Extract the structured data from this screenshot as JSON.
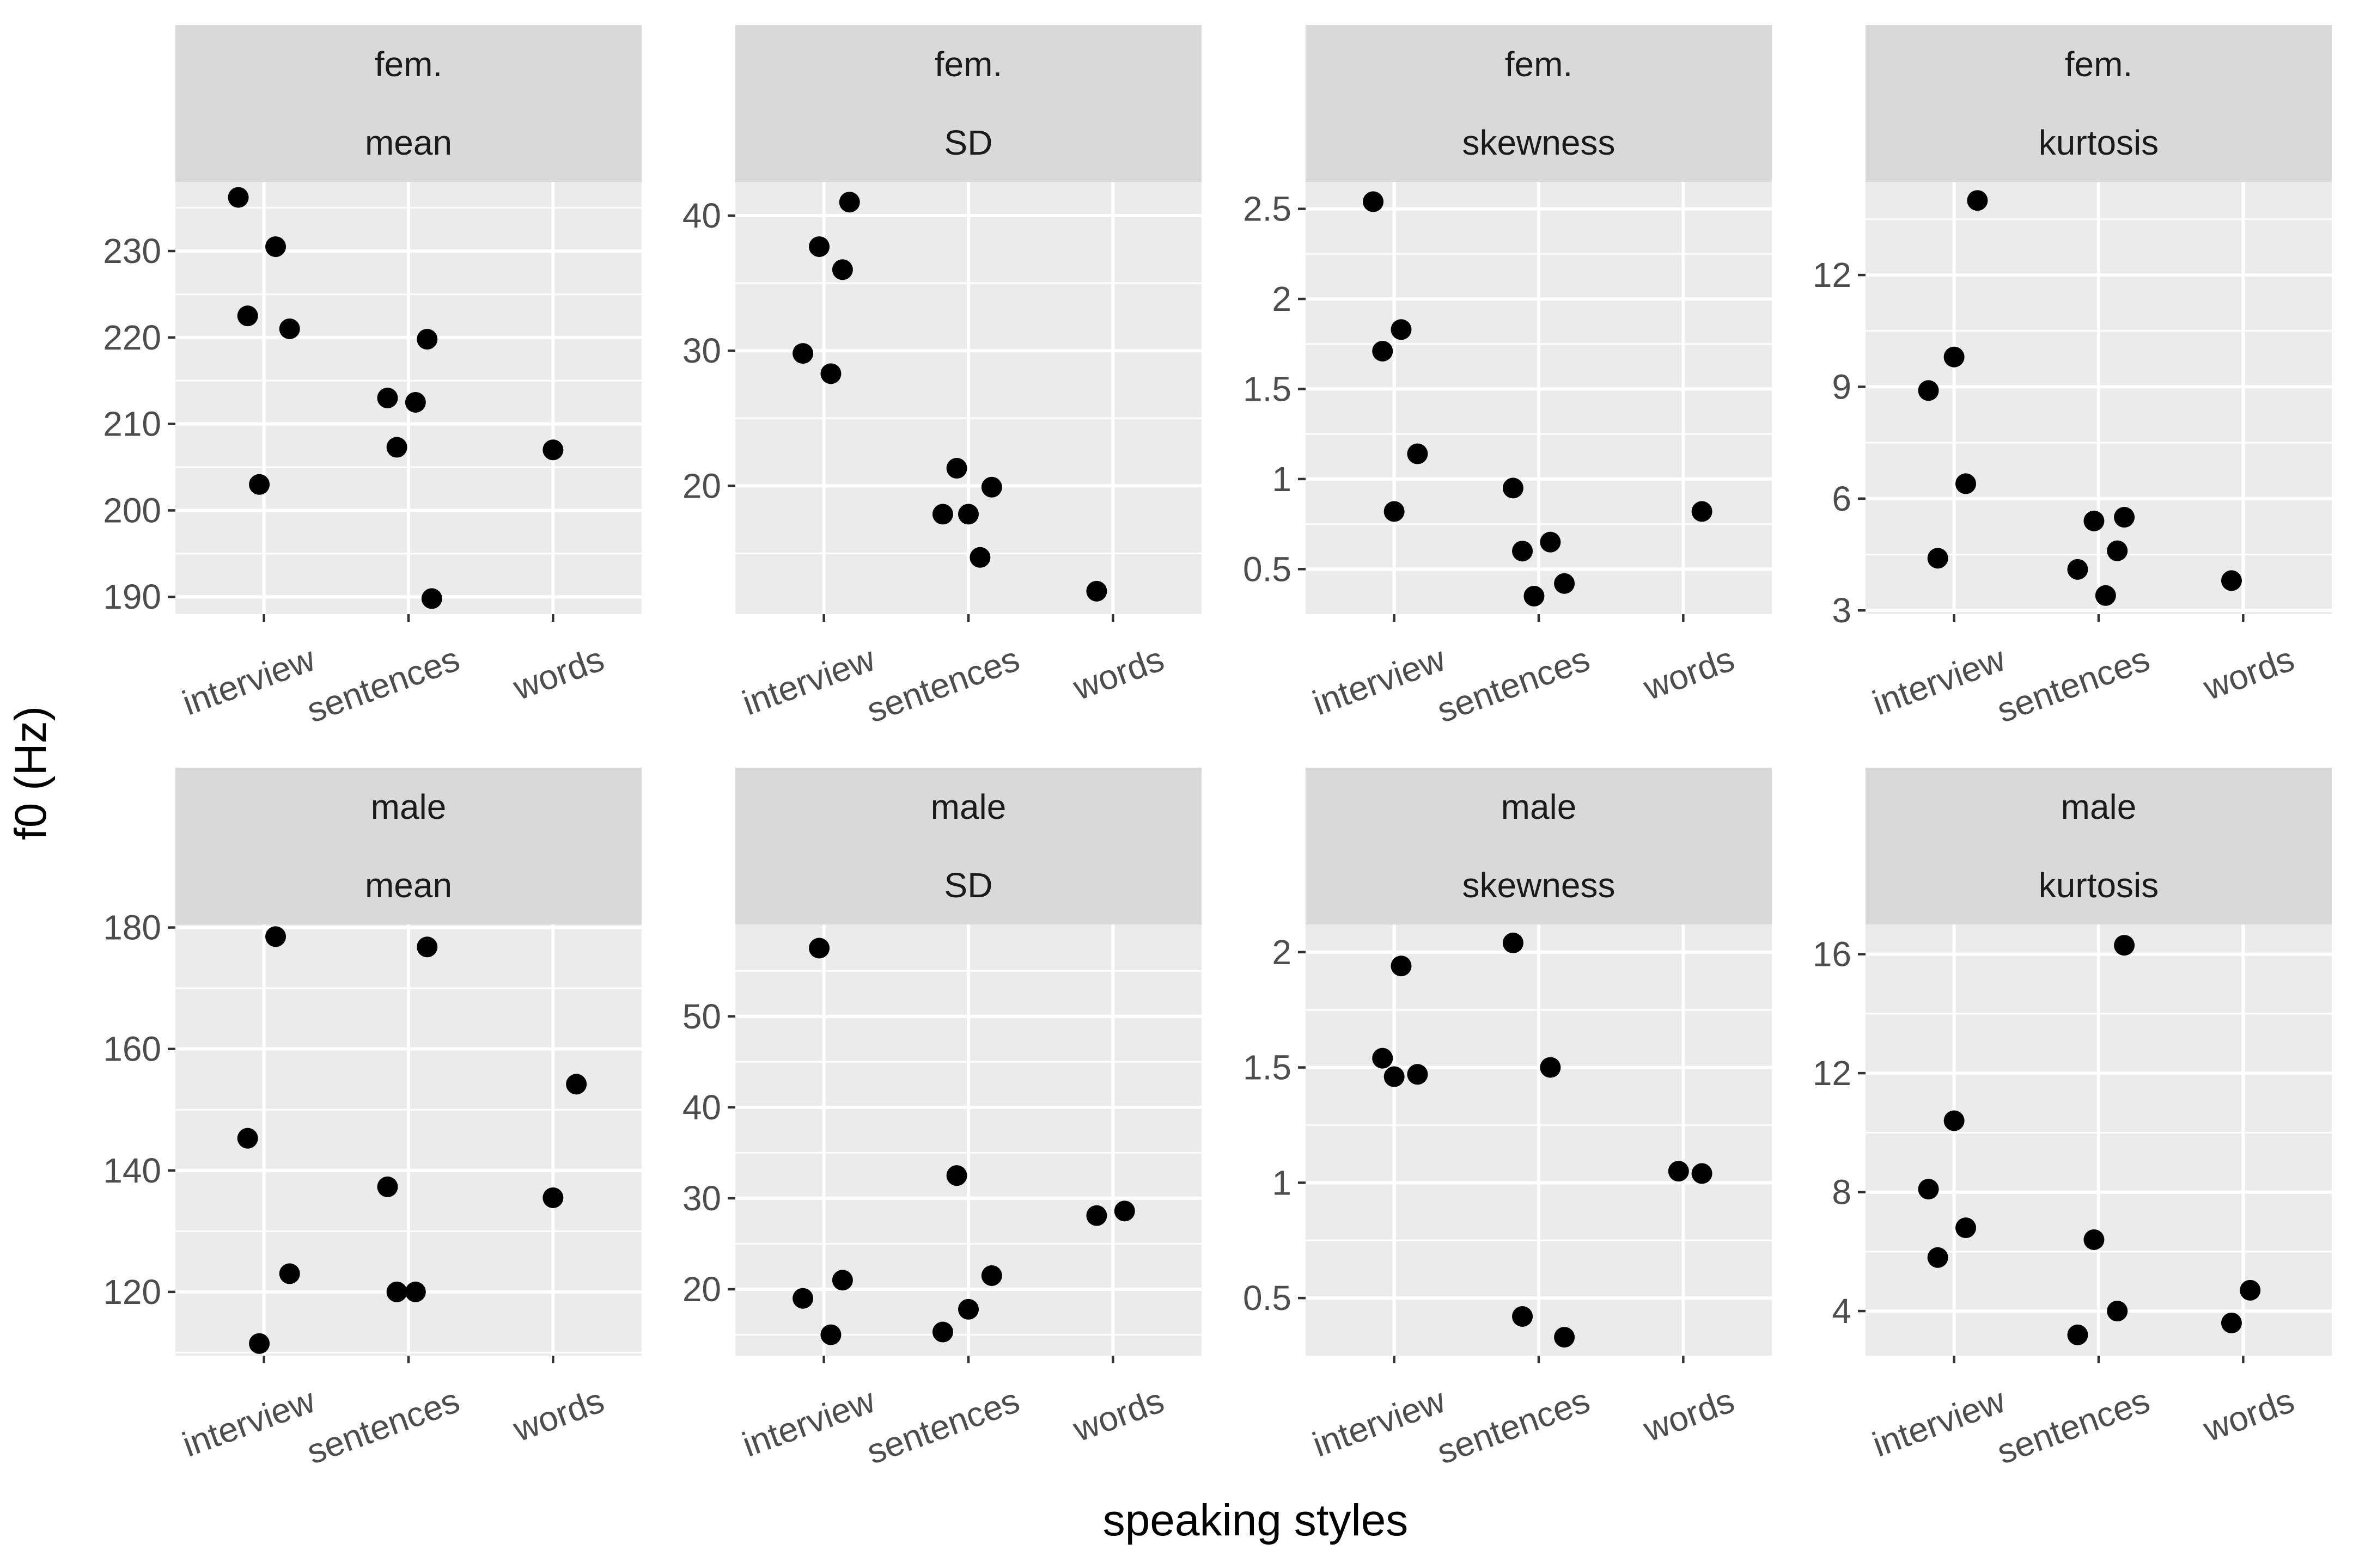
{
  "chart_data": {
    "type": "scatter",
    "xlabel": "speaking styles",
    "ylabel": "f0 (Hz)",
    "grid": true,
    "categories": [
      "interview",
      "sentences",
      "words"
    ],
    "panels": [
      {
        "strip": [
          "fem.",
          "mean"
        ],
        "ylim": [
          188,
          238
        ],
        "yticks": [
          190,
          200,
          210,
          220,
          230
        ],
        "points": [
          {
            "x": "interview",
            "y": 236.2
          },
          {
            "x": "interview",
            "y": 230.5
          },
          {
            "x": "interview",
            "y": 222.5
          },
          {
            "x": "interview",
            "y": 221.0
          },
          {
            "x": "interview",
            "y": 203.0
          },
          {
            "x": "sentences",
            "y": 219.8
          },
          {
            "x": "sentences",
            "y": 213.0
          },
          {
            "x": "sentences",
            "y": 212.5
          },
          {
            "x": "sentences",
            "y": 207.3
          },
          {
            "x": "sentences",
            "y": 189.8
          },
          {
            "x": "words",
            "y": 207.0
          }
        ]
      },
      {
        "strip": [
          "fem.",
          "SD"
        ],
        "ylim": [
          10.5,
          42.5
        ],
        "yticks": [
          20,
          30,
          40
        ],
        "points": [
          {
            "x": "interview",
            "y": 41.0
          },
          {
            "x": "interview",
            "y": 37.7
          },
          {
            "x": "interview",
            "y": 36.0
          },
          {
            "x": "interview",
            "y": 29.8
          },
          {
            "x": "interview",
            "y": 28.3
          },
          {
            "x": "sentences",
            "y": 21.3
          },
          {
            "x": "sentences",
            "y": 19.9
          },
          {
            "x": "sentences",
            "y": 17.9
          },
          {
            "x": "sentences",
            "y": 17.9
          },
          {
            "x": "sentences",
            "y": 14.7
          },
          {
            "x": "words",
            "y": 12.2
          }
        ]
      },
      {
        "strip": [
          "fem.",
          "skewness"
        ],
        "ylim": [
          0.25,
          2.65
        ],
        "yticks": [
          0.5,
          1.0,
          1.5,
          2.0,
          2.5
        ],
        "points": [
          {
            "x": "interview",
            "y": 2.54
          },
          {
            "x": "interview",
            "y": 1.83
          },
          {
            "x": "interview",
            "y": 1.71
          },
          {
            "x": "interview",
            "y": 1.14
          },
          {
            "x": "interview",
            "y": 0.82
          },
          {
            "x": "sentences",
            "y": 0.95
          },
          {
            "x": "sentences",
            "y": 0.65
          },
          {
            "x": "sentences",
            "y": 0.6
          },
          {
            "x": "sentences",
            "y": 0.42
          },
          {
            "x": "sentences",
            "y": 0.35
          },
          {
            "x": "words",
            "y": 0.82
          }
        ]
      },
      {
        "strip": [
          "fem.",
          "kurtosis"
        ],
        "ylim": [
          2.9,
          14.5
        ],
        "yticks": [
          3,
          6,
          9,
          12
        ],
        "points": [
          {
            "x": "interview",
            "y": 14.0
          },
          {
            "x": "interview",
            "y": 9.8
          },
          {
            "x": "interview",
            "y": 8.9
          },
          {
            "x": "interview",
            "y": 6.4
          },
          {
            "x": "interview",
            "y": 4.4
          },
          {
            "x": "sentences",
            "y": 5.5
          },
          {
            "x": "sentences",
            "y": 5.4
          },
          {
            "x": "sentences",
            "y": 4.6
          },
          {
            "x": "sentences",
            "y": 4.1
          },
          {
            "x": "sentences",
            "y": 3.4
          },
          {
            "x": "words",
            "y": 3.8
          }
        ]
      },
      {
        "strip": [
          "male",
          "mean"
        ],
        "ylim": [
          109.5,
          180.5
        ],
        "yticks": [
          120,
          140,
          160,
          180
        ],
        "points": [
          {
            "x": "interview",
            "y": 178.5
          },
          {
            "x": "interview",
            "y": 145.3
          },
          {
            "x": "interview",
            "y": 123.0
          },
          {
            "x": "interview",
            "y": 111.5
          },
          {
            "x": "sentences",
            "y": 176.8
          },
          {
            "x": "sentences",
            "y": 137.3
          },
          {
            "x": "sentences",
            "y": 120.0
          },
          {
            "x": "sentences",
            "y": 120.0
          },
          {
            "x": "words",
            "y": 154.2
          },
          {
            "x": "words",
            "y": 135.5
          }
        ]
      },
      {
        "strip": [
          "male",
          "SD"
        ],
        "ylim": [
          12.7,
          60.1
        ],
        "yticks": [
          20,
          30,
          40,
          50
        ],
        "points": [
          {
            "x": "interview",
            "y": 57.5
          },
          {
            "x": "interview",
            "y": 21.0
          },
          {
            "x": "interview",
            "y": 19.0
          },
          {
            "x": "interview",
            "y": 15.0
          },
          {
            "x": "sentences",
            "y": 32.5
          },
          {
            "x": "sentences",
            "y": 21.5
          },
          {
            "x": "sentences",
            "y": 17.8
          },
          {
            "x": "sentences",
            "y": 15.3
          },
          {
            "x": "words",
            "y": 28.6
          },
          {
            "x": "words",
            "y": 28.1
          }
        ]
      },
      {
        "strip": [
          "male",
          "skewness"
        ],
        "ylim": [
          0.25,
          2.12
        ],
        "yticks": [
          0.5,
          1.0,
          1.5,
          2.0
        ],
        "points": [
          {
            "x": "interview",
            "y": 1.94
          },
          {
            "x": "interview",
            "y": 1.54
          },
          {
            "x": "interview",
            "y": 1.47
          },
          {
            "x": "interview",
            "y": 1.46
          },
          {
            "x": "sentences",
            "y": 2.04
          },
          {
            "x": "sentences",
            "y": 1.5
          },
          {
            "x": "sentences",
            "y": 0.42
          },
          {
            "x": "sentences",
            "y": 0.33
          },
          {
            "x": "words",
            "y": 1.05
          },
          {
            "x": "words",
            "y": 1.04
          }
        ]
      },
      {
        "strip": [
          "male",
          "kurtosis"
        ],
        "ylim": [
          2.5,
          17.0
        ],
        "yticks": [
          4,
          8,
          12,
          16
        ],
        "points": [
          {
            "x": "interview",
            "y": 10.4
          },
          {
            "x": "interview",
            "y": 8.1
          },
          {
            "x": "interview",
            "y": 6.8
          },
          {
            "x": "interview",
            "y": 5.8
          },
          {
            "x": "sentences",
            "y": 16.3
          },
          {
            "x": "sentences",
            "y": 6.4
          },
          {
            "x": "sentences",
            "y": 4.0
          },
          {
            "x": "sentences",
            "y": 3.2
          },
          {
            "x": "words",
            "y": 4.7
          },
          {
            "x": "words",
            "y": 3.6
          }
        ]
      }
    ]
  }
}
